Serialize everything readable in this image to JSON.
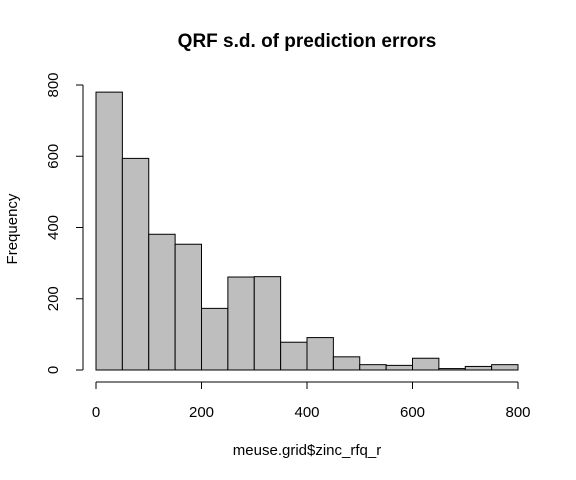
{
  "chart_data": {
    "type": "bar",
    "title": "QRF s.d. of prediction errors",
    "xlabel": "meuse.grid$zinc_rfq_r",
    "ylabel": "Frequency",
    "bins": [
      {
        "start": 0,
        "end": 50,
        "count": 780
      },
      {
        "start": 50,
        "end": 100,
        "count": 594
      },
      {
        "start": 100,
        "end": 150,
        "count": 381
      },
      {
        "start": 150,
        "end": 200,
        "count": 353
      },
      {
        "start": 200,
        "end": 250,
        "count": 173
      },
      {
        "start": 250,
        "end": 300,
        "count": 261
      },
      {
        "start": 300,
        "end": 350,
        "count": 262
      },
      {
        "start": 350,
        "end": 400,
        "count": 78
      },
      {
        "start": 400,
        "end": 450,
        "count": 91
      },
      {
        "start": 450,
        "end": 500,
        "count": 37
      },
      {
        "start": 500,
        "end": 550,
        "count": 15
      },
      {
        "start": 550,
        "end": 600,
        "count": 13
      },
      {
        "start": 600,
        "end": 650,
        "count": 33
      },
      {
        "start": 650,
        "end": 700,
        "count": 4
      },
      {
        "start": 700,
        "end": 750,
        "count": 10
      },
      {
        "start": 750,
        "end": 800,
        "count": 15
      }
    ],
    "xlim": [
      0,
      800
    ],
    "ylim": [
      0,
      800
    ],
    "xticks": [
      "0",
      "200",
      "400",
      "600",
      "800"
    ],
    "yticks": [
      "0",
      "200",
      "400",
      "600",
      "800"
    ],
    "bar_color": "#bebebe",
    "border_color": "#000000",
    "grid": false
  }
}
